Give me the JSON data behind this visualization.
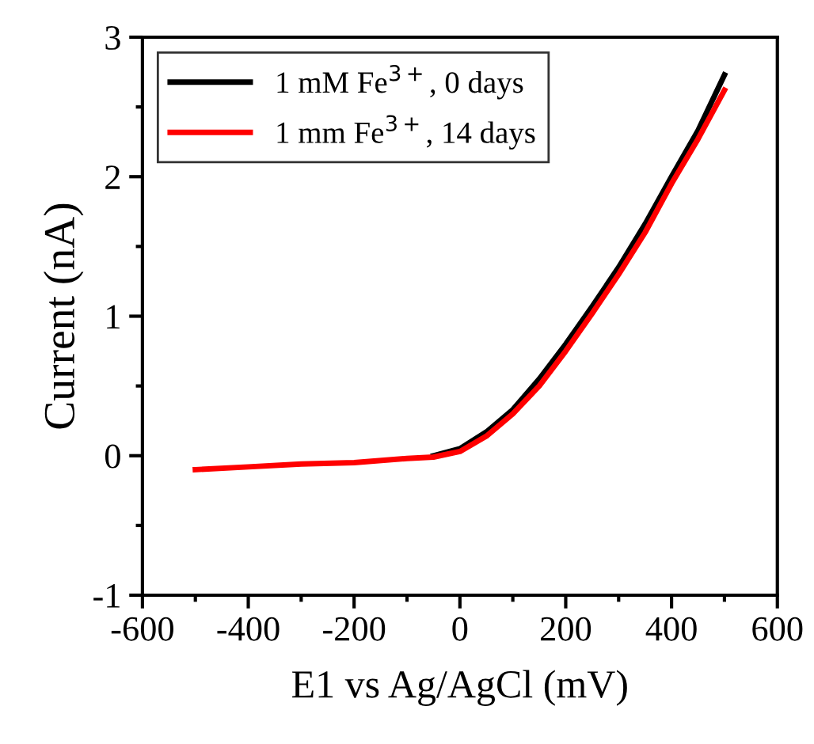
{
  "chart_data": {
    "type": "line",
    "xlabel": "E1 vs Ag/AgCl (mV)",
    "ylabel": "Current (nA)",
    "xlim": [
      -600,
      600
    ],
    "xticks": [
      -600,
      -400,
      -200,
      0,
      200,
      400,
      600
    ],
    "ylim": [
      -1,
      3
    ],
    "yticks": [
      -1,
      0,
      1,
      2,
      3
    ],
    "legend": "top left",
    "grid": false,
    "line_style": "solid",
    "marker": "none",
    "series": [
      {
        "name": "1 mM Fe$^{3+}$, 0 days",
        "color": "#000000",
        "x": [
          -50,
          0,
          50,
          100,
          150,
          200,
          250,
          300,
          350,
          400,
          450,
          500
        ],
        "values": [
          0,
          0.05,
          0.17,
          0.33,
          0.55,
          0.8,
          1.07,
          1.35,
          1.66,
          2.0,
          2.33,
          2.73
        ]
      },
      {
        "name": "1 mm Fe$^{3+}$, 14 days",
        "color": "#ff0000",
        "x": [
          -500,
          -400,
          -300,
          -200,
          -100,
          -50,
          0,
          50,
          100,
          150,
          200,
          250,
          300,
          350,
          400,
          450,
          500
        ],
        "values": [
          -0.1,
          -0.08,
          -0.06,
          -0.05,
          -0.02,
          -0.01,
          0.03,
          0.14,
          0.3,
          0.5,
          0.75,
          1.02,
          1.3,
          1.6,
          1.95,
          2.27,
          2.62
        ]
      }
    ]
  }
}
